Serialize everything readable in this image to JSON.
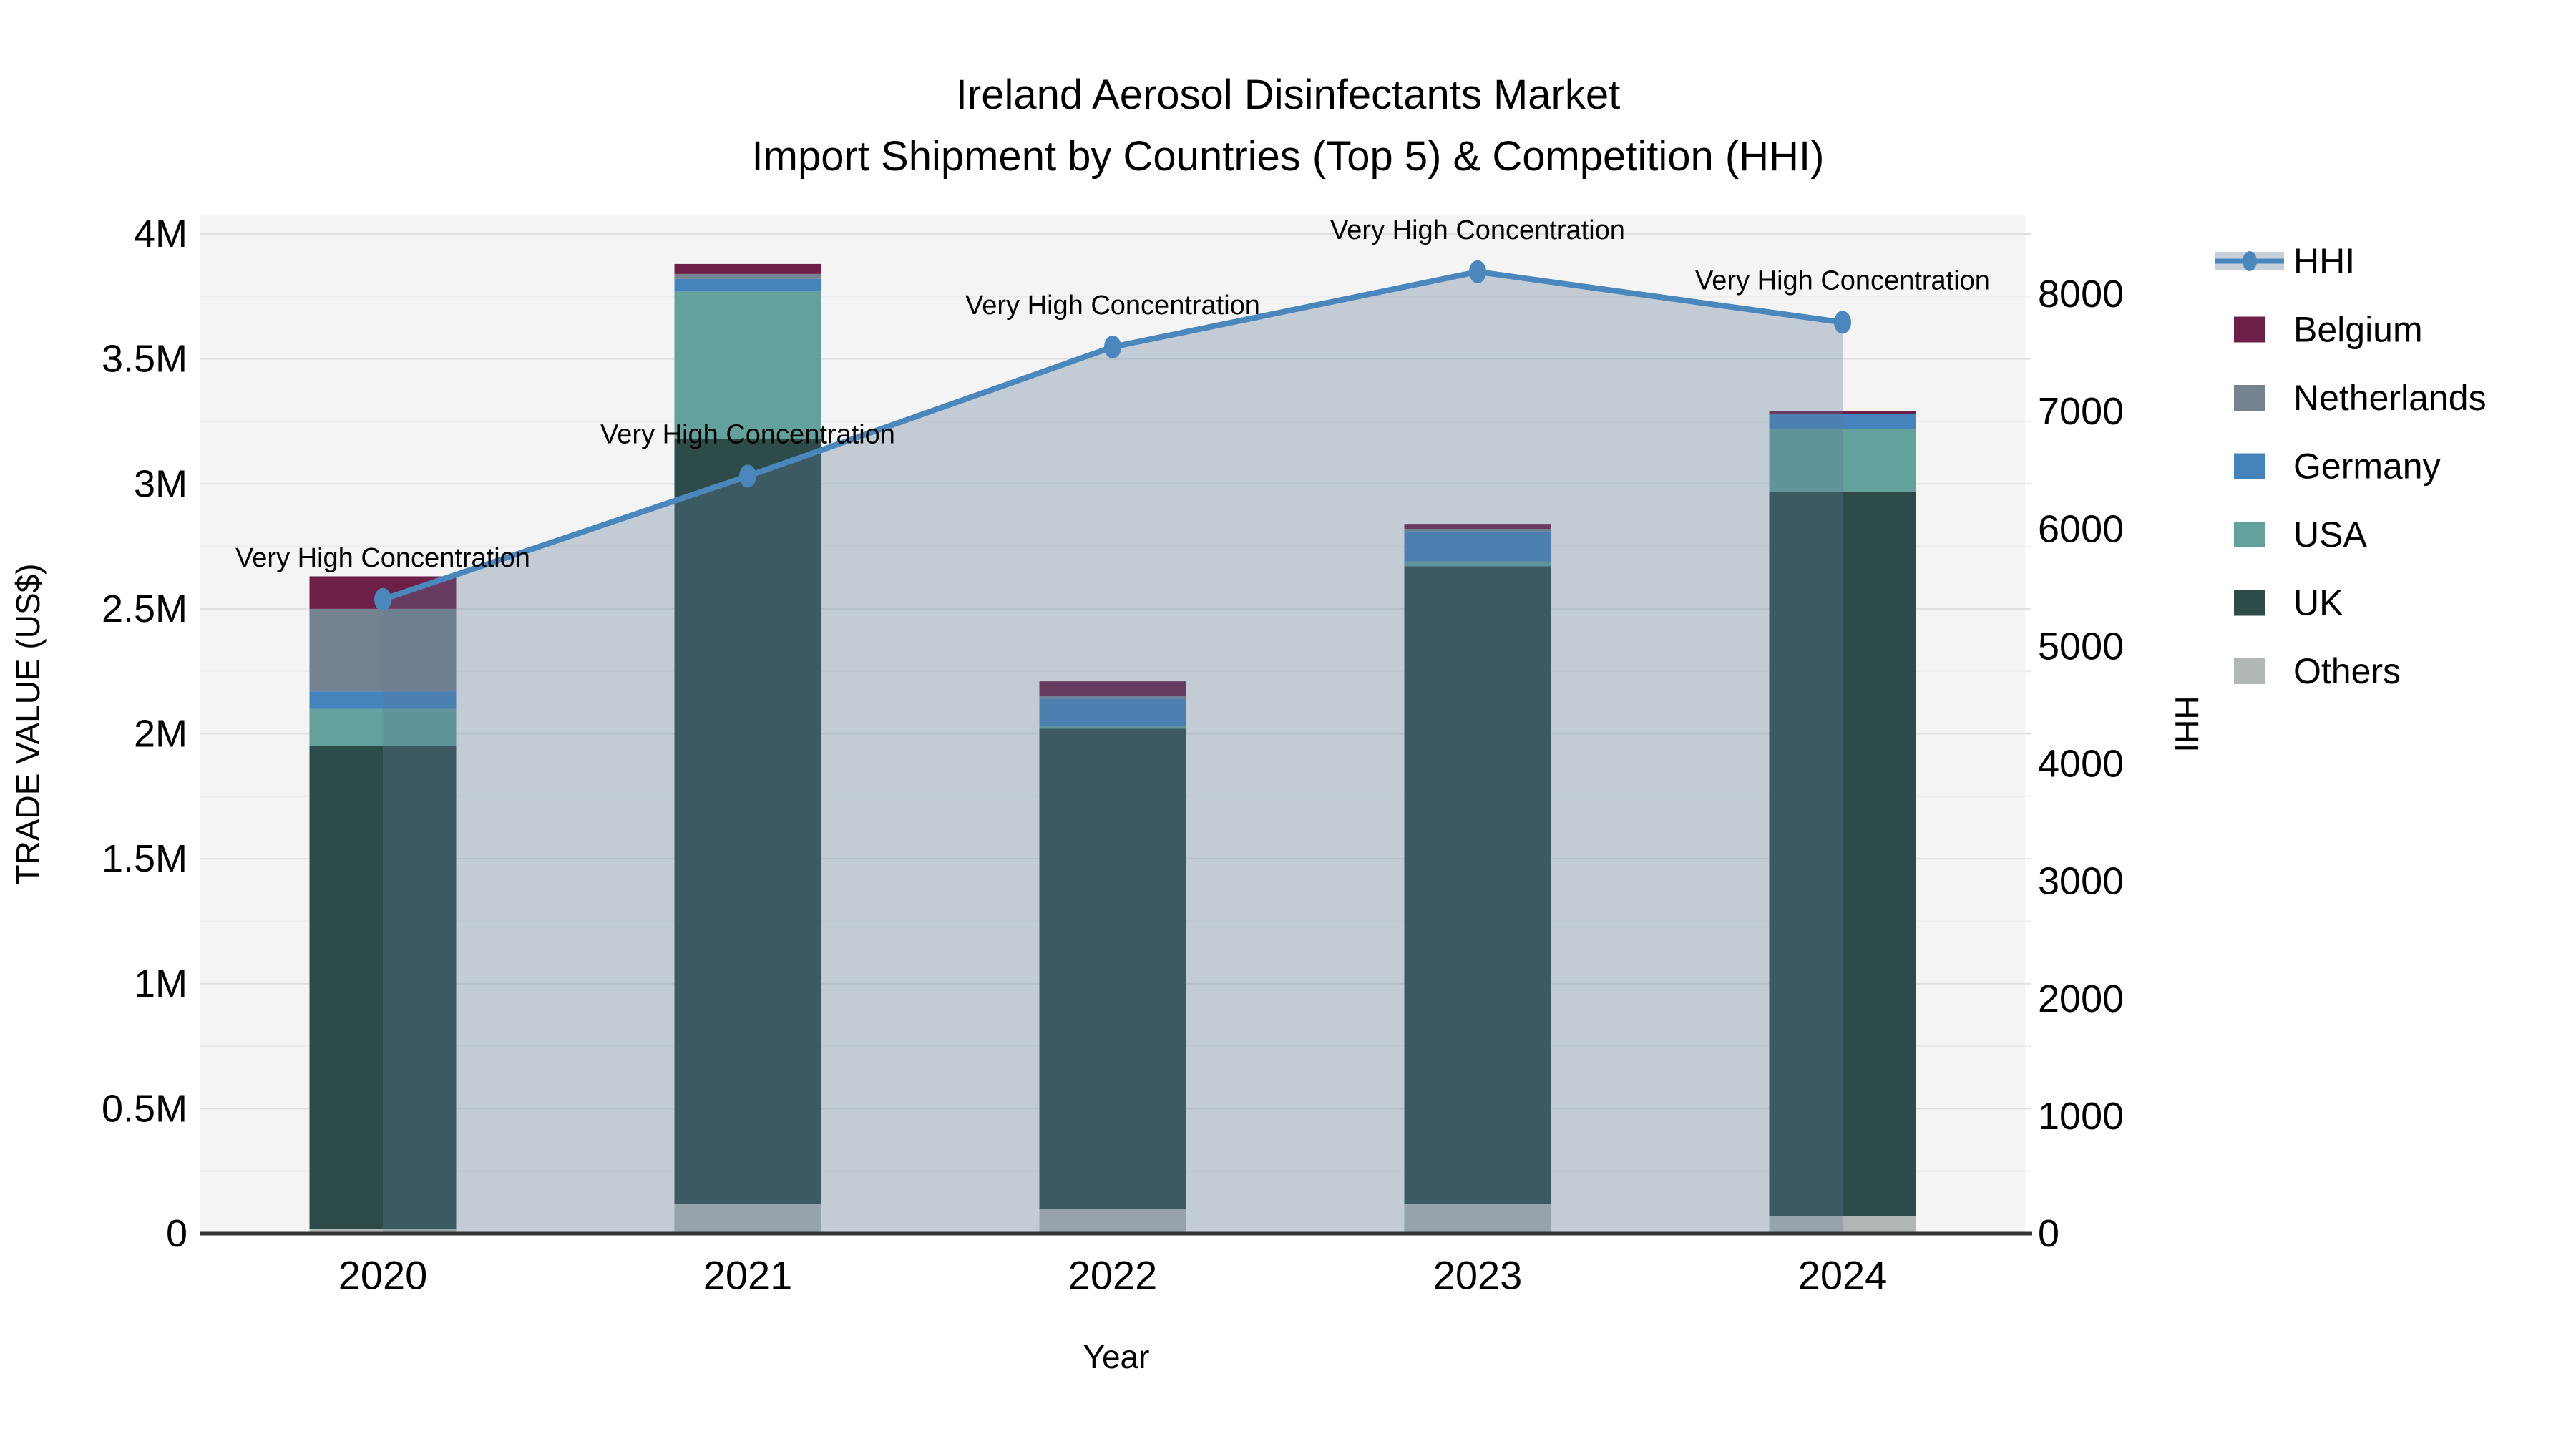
{
  "page": {
    "background": "#ffffff"
  },
  "chart_data": {
    "type": "bar+line",
    "title_lines": [
      "Ireland Aerosol Disinfectants Market",
      "Import Shipment by Countries (Top 5) & Competition (HHI)"
    ],
    "xlabel": "Year",
    "unit": "US$ millions",
    "categories": [
      "2020",
      "2021",
      "2022",
      "2023",
      "2024"
    ],
    "left_axis": {
      "label": "TRADE VALUE (US$)",
      "min": 0,
      "max_musd": 4,
      "tick_step_musd": 0.5,
      "ticks": [
        "0",
        "0.5M",
        "1M",
        "1.5M",
        "2M",
        "2.5M",
        "3M",
        "3.5M",
        "4M"
      ]
    },
    "right_axis": {
      "label": "HHI",
      "min": 0,
      "max": 8000,
      "tick_step": 1000,
      "ticks": [
        "0",
        "1000",
        "2000",
        "3000",
        "4000",
        "5000",
        "6000",
        "7000",
        "8000"
      ]
    },
    "stack_series": [
      {
        "name": "Others",
        "color": "#b2b7b5",
        "values_musd": [
          0.02,
          0.12,
          0.1,
          0.12,
          0.07
        ]
      },
      {
        "name": "UK",
        "color": "#2d4c49",
        "values_musd": [
          1.93,
          3.06,
          1.92,
          2.55,
          2.9
        ]
      },
      {
        "name": "USA",
        "color": "#62a19c",
        "values_musd": [
          0.15,
          0.59,
          0.01,
          0.02,
          0.25
        ]
      },
      {
        "name": "Germany",
        "color": "#4583bd",
        "values_musd": [
          0.07,
          0.05,
          0.11,
          0.12,
          0.06
        ]
      },
      {
        "name": "Netherlands",
        "color": "#758290",
        "values_musd": [
          0.33,
          0.02,
          0.01,
          0.01,
          0.0
        ]
      },
      {
        "name": "Belgium",
        "color": "#6d1f47",
        "values_musd": [
          0.13,
          0.04,
          0.06,
          0.02,
          0.01
        ]
      }
    ],
    "bar_totals_musd": [
      2.63,
      3.88,
      2.21,
      2.84,
      3.29
    ],
    "hhi_line": {
      "name": "HHI",
      "color": "#4a87bd",
      "area_color": "rgba(93,122,148,0.32)",
      "legend_band_color": "#c7d0d9",
      "values": [
        5400,
        6450,
        7550,
        8190,
        7760
      ]
    },
    "annotations": [
      "Very High Concentration",
      "Very High Concentration",
      "Very High Concentration",
      "Very High Concentration",
      "Very High Concentration"
    ],
    "legend": {
      "order": [
        "HHI",
        "Belgium",
        "Netherlands",
        "Germany",
        "USA",
        "UK",
        "Others"
      ]
    },
    "style": {
      "plot_bg": "#f3f4f3",
      "grid_major": "#dfe1e1",
      "grid_minor": "#ececec",
      "axis_line": "#333333",
      "text_color": "#000000"
    }
  }
}
